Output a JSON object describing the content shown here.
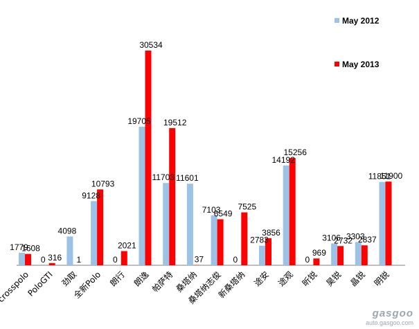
{
  "chart_data": {
    "type": "bar",
    "title": "",
    "xlabel": "",
    "ylabel": "",
    "ylim": [
      0,
      33000
    ],
    "grid": false,
    "legend_position": "top-right",
    "categories": [
      "crosspolo",
      "PoloGTI",
      "劲取",
      "全新Polo",
      "朗行",
      "朗逸",
      "帕萨特",
      "桑塔纳",
      "桑塔纳志俊",
      "新桑塔纳",
      "途安",
      "途观",
      "昕锐",
      "昊锐",
      "晶锐",
      "明锐"
    ],
    "series": [
      {
        "name": "May  2012",
        "color": "#9cc3e6",
        "values": [
          1779,
          0,
          4098,
          9128,
          0,
          19705,
          11703,
          11601,
          7103,
          0,
          2783,
          14192,
          0,
          3106,
          3303,
          11851
        ]
      },
      {
        "name": "May  2013",
        "color": "#ff0000",
        "values": [
          1608,
          316,
          1,
          10793,
          2021,
          30534,
          19512,
          37,
          6549,
          7525,
          3856,
          15256,
          969,
          2732,
          2837,
          11900
        ]
      }
    ]
  },
  "watermark": {
    "logo": "gasgoo",
    "url": "auto.gasgoo.com"
  }
}
